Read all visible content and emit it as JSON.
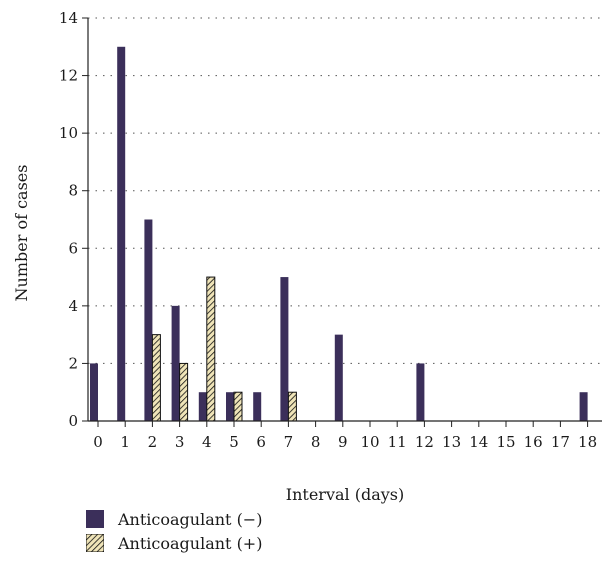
{
  "chart_data": {
    "type": "bar",
    "xlabel": "Interval (days)",
    "ylabel": "Number of cases",
    "ylim": [
      0,
      14
    ],
    "yticks": [
      "0",
      "2",
      "4",
      "6",
      "8",
      "10",
      "12",
      "14"
    ],
    "categories": [
      "0",
      "1",
      "2",
      "3",
      "4",
      "5",
      "6",
      "7",
      "8",
      "9",
      "10",
      "11",
      "12",
      "13",
      "14",
      "15",
      "16",
      "17",
      "18"
    ],
    "grid": "horizontal dotted",
    "legend_position": "bottom-left",
    "series": [
      {
        "name": "Anticoagulant (−)",
        "color": "#3b2f5a",
        "fill": "solid",
        "values": [
          2,
          13,
          7,
          4,
          1,
          1,
          1,
          5,
          0,
          3,
          0,
          0,
          2,
          0,
          0,
          0,
          0,
          0,
          1
        ]
      },
      {
        "name": "Anticoagulant (+)",
        "color": "#e8dcae",
        "fill": "hatched",
        "values": [
          0,
          0,
          3,
          2,
          5,
          1,
          0,
          1,
          0,
          0,
          0,
          0,
          0,
          0,
          0,
          0,
          0,
          0,
          0
        ]
      }
    ]
  }
}
